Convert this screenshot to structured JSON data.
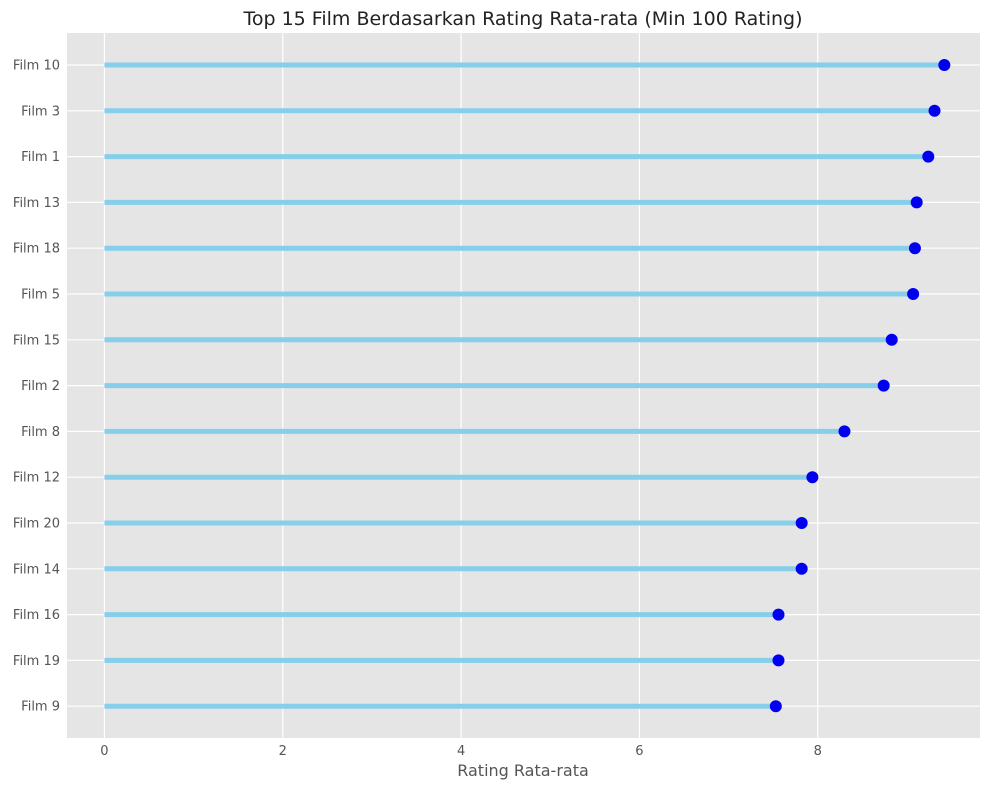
{
  "chart_data": {
    "type": "lollipop",
    "title": "Top 15 Film Berdasarkan Rating Rata-rata (Min 100 Rating)",
    "xlabel": "Rating Rata-rata",
    "ylabel": "",
    "xlim": [
      -0.42,
      9.82
    ],
    "xticks": [
      0,
      2,
      4,
      6,
      8
    ],
    "grid": true,
    "orientation": "horizontal",
    "stem_color": "#87ceeb",
    "marker_color": "#0000ee",
    "background": "#e5e5e5",
    "categories": [
      "Film 10",
      "Film 3",
      "Film 1",
      "Film 13",
      "Film 18",
      "Film 5",
      "Film 15",
      "Film 2",
      "Film 8",
      "Film 12",
      "Film 20",
      "Film 14",
      "Film 16",
      "Film 19",
      "Film 9"
    ],
    "values": [
      9.42,
      9.31,
      9.24,
      9.11,
      9.09,
      9.07,
      8.83,
      8.74,
      8.3,
      7.94,
      7.82,
      7.82,
      7.56,
      7.56,
      7.53
    ]
  }
}
